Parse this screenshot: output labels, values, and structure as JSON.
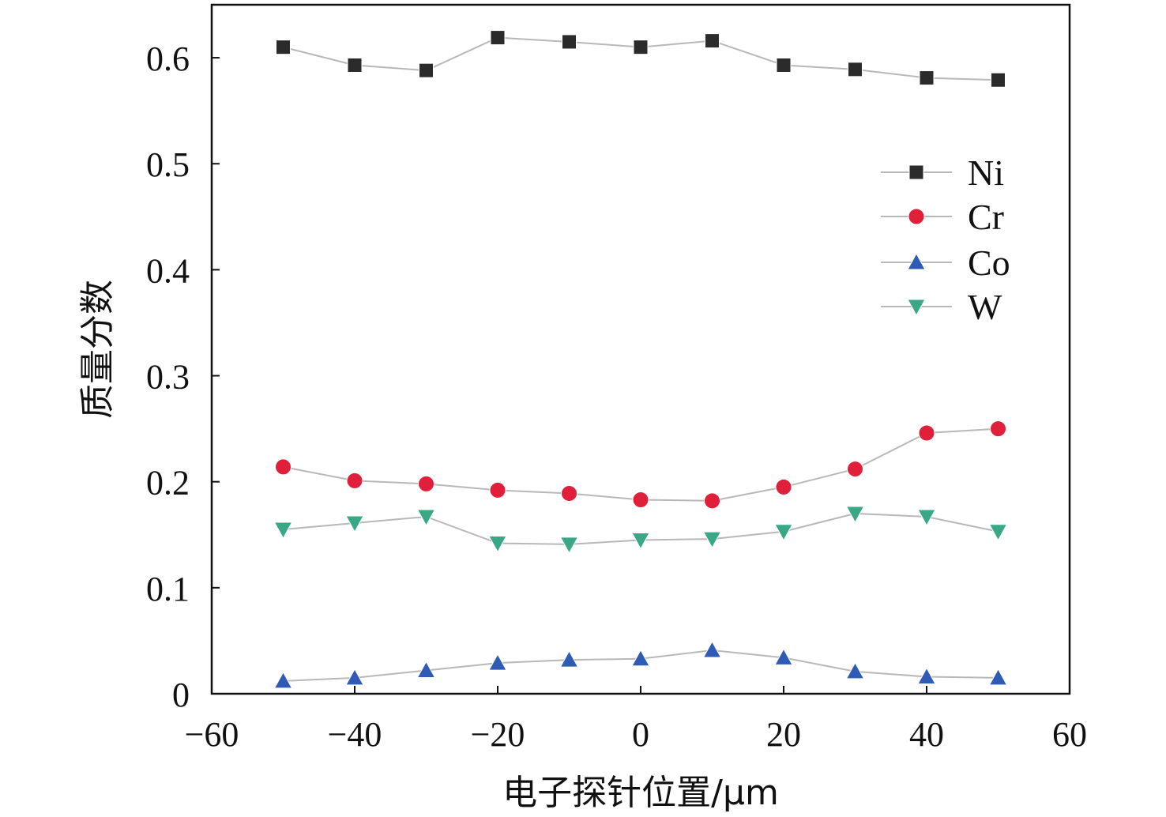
{
  "chart_data": {
    "type": "line",
    "xlabel": "电子探针位置/μm",
    "ylabel": "质量分数",
    "xlim": [
      -60,
      60
    ],
    "ylim": [
      0,
      0.65
    ],
    "x_ticks": [
      -60,
      -40,
      -20,
      0,
      20,
      40,
      60
    ],
    "x_tick_labels": [
      "−60",
      "−40",
      "−20",
      "0",
      "20",
      "40",
      "60"
    ],
    "y_ticks": [
      0,
      0.1,
      0.2,
      0.3,
      0.4,
      0.5,
      0.6
    ],
    "y_tick_labels": [
      "0",
      "0.1",
      "0.2",
      "0.3",
      "0.4",
      "0.5",
      "0.6"
    ],
    "grid": false,
    "legend_position": "upper-right",
    "x": [
      -50,
      -40,
      -30,
      -20,
      -10,
      0,
      10,
      20,
      30,
      40,
      50
    ],
    "series": [
      {
        "name": "Ni",
        "marker": "square",
        "color": "#2b2b2b",
        "values": [
          0.61,
          0.593,
          0.588,
          0.619,
          0.615,
          0.61,
          0.616,
          0.593,
          0.589,
          0.581,
          0.579
        ]
      },
      {
        "name": "Cr",
        "marker": "circle",
        "color": "#e0203a",
        "values": [
          0.214,
          0.201,
          0.198,
          0.192,
          0.189,
          0.183,
          0.182,
          0.195,
          0.212,
          0.246,
          0.25
        ]
      },
      {
        "name": "Co",
        "marker": "triangle-up",
        "color": "#2f5bb5",
        "values": [
          0.012,
          0.015,
          0.022,
          0.029,
          0.032,
          0.033,
          0.041,
          0.034,
          0.021,
          0.016,
          0.015
        ]
      },
      {
        "name": "W",
        "marker": "triangle-down",
        "color": "#3aa886",
        "values": [
          0.155,
          0.161,
          0.167,
          0.142,
          0.141,
          0.145,
          0.146,
          0.153,
          0.17,
          0.167,
          0.153
        ]
      }
    ],
    "line_color": "#b8b8b8"
  }
}
